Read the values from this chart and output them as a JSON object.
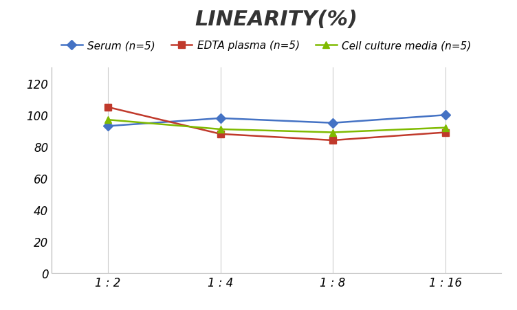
{
  "title": "LINEARITY(%)",
  "x_labels": [
    "1 : 2",
    "1 : 4",
    "1 : 8",
    "1 : 16"
  ],
  "x_positions": [
    0,
    1,
    2,
    3
  ],
  "series": [
    {
      "label": "Serum (n=5)",
      "values": [
        93,
        98,
        95,
        100
      ],
      "color": "#4472C4",
      "marker": "D",
      "marker_size": 7,
      "linewidth": 1.8
    },
    {
      "label": "EDTA plasma (n=5)",
      "values": [
        105,
        88,
        84,
        89
      ],
      "color": "#C0392B",
      "marker": "s",
      "marker_size": 7,
      "linewidth": 1.8
    },
    {
      "label": "Cell culture media (n=5)",
      "values": [
        97,
        91,
        89,
        92
      ],
      "color": "#7fba00",
      "marker": "^",
      "marker_size": 7,
      "linewidth": 1.8
    }
  ],
  "ylim": [
    0,
    130
  ],
  "yticks": [
    0,
    20,
    40,
    60,
    80,
    100,
    120
  ],
  "background_color": "#ffffff",
  "grid_color": "#cccccc",
  "title_fontsize": 22,
  "title_fontstyle": "italic",
  "title_fontweight": "bold",
  "legend_fontsize": 11,
  "tick_fontsize": 12
}
